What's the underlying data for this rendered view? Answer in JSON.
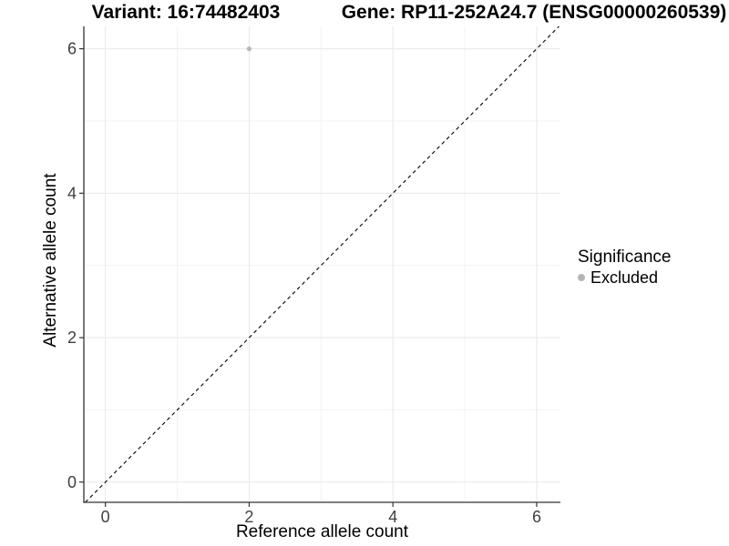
{
  "titles": {
    "variant": "Variant: 16:74482403",
    "gene": "Gene: RP11-252A24.7 (ENSG00000260539)"
  },
  "legend": {
    "title": "Significance",
    "items": [
      {
        "label": "Excluded",
        "color": "#b5b5b5"
      }
    ]
  },
  "colors": {
    "background": "#ffffff",
    "grid_major": "#e8e8e8",
    "grid_minor": "#f2f2f2",
    "axis_line": "#333333",
    "tick_mark": "#333333",
    "tick_label": "#404040",
    "point": "#b8b8b8",
    "dashed_line": "#000000"
  },
  "chart_data": {
    "type": "scatter",
    "title": "Variant: 16:74482403 — Gene: RP11-252A24.7 (ENSG00000260539)",
    "xlabel": "Reference allele count",
    "ylabel": "Alternative allele count",
    "xlim": [
      -0.3,
      6.33
    ],
    "ylim": [
      -0.28,
      6.31
    ],
    "xticks": [
      0,
      2,
      4,
      6
    ],
    "yticks": [
      0,
      2,
      4,
      6
    ],
    "xminor": [
      1,
      3,
      5
    ],
    "yminor": [
      1,
      3,
      5
    ],
    "grid": true,
    "legend_position": "right",
    "points": [
      {
        "x": 2,
        "y": 6,
        "series": "Excluded"
      }
    ],
    "series": [
      {
        "name": "Excluded",
        "color": "#b8b8b8"
      }
    ],
    "reference_line": {
      "slope": 1,
      "intercept": 0,
      "style": "dashed",
      "color": "#000000",
      "meaning": "identity line y = x"
    }
  }
}
